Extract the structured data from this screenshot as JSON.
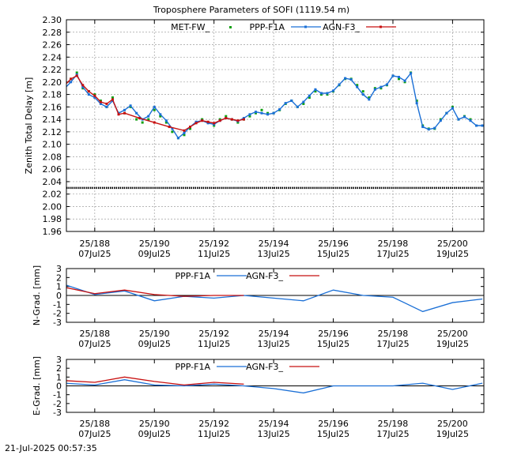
{
  "title": "Troposphere Parameters of SOFI (1119.54 m)",
  "timestamp": "21-Jul-2025 00:57:35",
  "colors": {
    "met": "#10a010",
    "ppp": "#1a6fd6",
    "agn": "#c81010",
    "axis": "#000000",
    "grid": "#a0a0a0"
  },
  "x_ticks": [
    {
      "doy": 188,
      "top": "25/188",
      "bottom": "07Jul25"
    },
    {
      "doy": 190,
      "top": "25/190",
      "bottom": "09Jul25"
    },
    {
      "doy": 192,
      "top": "25/192",
      "bottom": "11Jul25"
    },
    {
      "doy": 194,
      "top": "25/194",
      "bottom": "13Jul25"
    },
    {
      "doy": 196,
      "top": "25/196",
      "bottom": "15Jul25"
    },
    {
      "doy": 198,
      "top": "25/198",
      "bottom": "17Jul25"
    },
    {
      "doy": 200,
      "top": "25/200",
      "bottom": "19Jul25"
    }
  ],
  "chart_data": [
    {
      "type": "line",
      "ylabel": "Zenith Total Delay [m]",
      "xlim": [
        187.05,
        201.05
      ],
      "ylim": [
        1.96,
        2.3
      ],
      "yticks": [
        "1.96",
        "1.98",
        "2.00",
        "2.02",
        "2.04",
        "2.06",
        "2.08",
        "2.10",
        "2.12",
        "2.14",
        "2.16",
        "2.18",
        "2.20",
        "2.22",
        "2.24",
        "2.26",
        "2.28",
        "2.30"
      ],
      "grid": true,
      "legend": "top-center",
      "series": [
        {
          "name": "MET-FW_",
          "style": "points",
          "x": [
            187.0,
            187.2,
            187.4,
            187.6,
            187.8,
            188.0,
            188.2,
            188.4,
            188.6,
            188.8,
            189.0,
            189.2,
            189.4,
            189.6,
            189.8,
            190.0,
            190.2,
            190.4,
            190.6,
            190.8,
            191.0,
            191.2,
            191.4,
            191.6,
            191.8,
            192.0,
            192.2,
            192.4,
            192.6,
            192.8,
            193.0,
            193.2,
            193.4,
            193.6,
            193.8,
            194.0,
            194.2,
            194.4,
            194.6,
            194.8,
            195.0,
            195.2,
            195.4,
            195.6,
            195.8,
            196.0,
            196.2,
            196.4,
            196.6,
            196.8,
            197.0,
            197.2,
            197.4,
            197.6,
            197.8,
            198.0,
            198.2,
            198.4,
            198.6,
            198.8,
            199.0,
            199.2,
            199.4,
            199.6,
            199.8,
            200.0,
            200.2,
            200.4,
            200.6,
            200.8,
            201.0
          ],
          "y": [
            2.195,
            2.205,
            2.215,
            2.19,
            2.185,
            2.18,
            2.17,
            2.16,
            2.175,
            2.15,
            2.15,
            2.16,
            2.14,
            2.135,
            2.14,
            2.155,
            2.145,
            2.135,
            2.12,
            2.11,
            2.115,
            2.125,
            2.135,
            2.14,
            2.135,
            2.13,
            2.14,
            2.145,
            2.14,
            2.135,
            2.14,
            2.145,
            2.15,
            2.155,
            2.15,
            2.15,
            2.155,
            2.165,
            2.17,
            2.16,
            2.165,
            2.175,
            2.185,
            2.18,
            2.18,
            2.185,
            2.195,
            2.205,
            2.205,
            2.195,
            2.185,
            2.175,
            2.19,
            2.19,
            2.195,
            2.21,
            2.205,
            2.2,
            2.215,
            2.17,
            2.13,
            2.125,
            2.125,
            2.14,
            2.15,
            2.16,
            2.14,
            2.145,
            2.14,
            2.13,
            2.13
          ]
        },
        {
          "name": "PPP-F1A",
          "style": "line-points",
          "x": [
            187.0,
            187.2,
            187.4,
            187.6,
            187.8,
            188.0,
            188.2,
            188.4,
            188.6,
            188.8,
            189.0,
            189.2,
            189.4,
            189.6,
            189.8,
            190.0,
            190.2,
            190.4,
            190.6,
            190.8,
            191.0,
            191.2,
            191.4,
            191.6,
            191.8,
            192.0,
            192.2,
            192.4,
            192.6,
            192.8,
            193.0,
            193.2,
            193.4,
            193.6,
            193.8,
            194.0,
            194.2,
            194.4,
            194.6,
            194.8,
            195.0,
            195.2,
            195.4,
            195.6,
            195.8,
            196.0,
            196.2,
            196.4,
            196.6,
            196.8,
            197.0,
            197.2,
            197.4,
            197.6,
            197.8,
            198.0,
            198.2,
            198.4,
            198.6,
            198.8,
            199.0,
            199.2,
            199.4,
            199.6,
            199.8,
            200.0,
            200.2,
            200.4,
            200.6,
            200.8,
            201.0
          ],
          "y": [
            2.19,
            2.2,
            2.212,
            2.192,
            2.18,
            2.175,
            2.165,
            2.16,
            2.17,
            2.15,
            2.155,
            2.162,
            2.15,
            2.14,
            2.145,
            2.16,
            2.148,
            2.138,
            2.125,
            2.11,
            2.118,
            2.128,
            2.136,
            2.138,
            2.134,
            2.132,
            2.138,
            2.142,
            2.14,
            2.137,
            2.142,
            2.148,
            2.152,
            2.15,
            2.148,
            2.15,
            2.156,
            2.166,
            2.17,
            2.16,
            2.168,
            2.178,
            2.188,
            2.182,
            2.182,
            2.186,
            2.196,
            2.206,
            2.204,
            2.192,
            2.18,
            2.172,
            2.188,
            2.192,
            2.196,
            2.21,
            2.208,
            2.202,
            2.214,
            2.166,
            2.128,
            2.124,
            2.126,
            2.138,
            2.15,
            2.158,
            2.14,
            2.144,
            2.138,
            2.13,
            2.13
          ]
        },
        {
          "name": "AGN-F3_",
          "style": "line-points",
          "x": [
            187.0,
            187.2,
            187.4,
            187.6,
            187.8,
            188.0,
            188.2,
            188.4,
            188.6,
            188.8,
            189.0,
            189.5,
            190.0,
            190.5,
            191.0,
            191.2,
            191.4,
            191.6,
            191.8,
            192.0,
            192.2,
            192.4,
            192.6,
            192.8,
            193.0
          ],
          "y": [
            2.195,
            2.205,
            2.21,
            2.195,
            2.185,
            2.178,
            2.168,
            2.165,
            2.172,
            2.148,
            2.15,
            2.142,
            2.135,
            2.128,
            2.122,
            2.128,
            2.134,
            2.138,
            2.136,
            2.134,
            2.138,
            2.142,
            2.14,
            2.138,
            2.14
          ]
        },
        {
          "name": "",
          "style": "baseline-points",
          "x": [
            187.05,
            201.05
          ],
          "y": [
            2.03,
            2.03
          ]
        }
      ]
    },
    {
      "type": "line",
      "ylabel": "N-Grad. [mm]",
      "xlim": [
        187.05,
        201.05
      ],
      "ylim": [
        -3,
        3
      ],
      "yticks": [
        "-3",
        "-2",
        "-1",
        "0",
        "1",
        "2",
        "3"
      ],
      "grid": false,
      "legend": "top-center",
      "series": [
        {
          "name": "PPP-F1A",
          "x": [
            187.0,
            188.0,
            189.0,
            190.0,
            191.0,
            192.0,
            193.0,
            194.0,
            195.0,
            196.0,
            197.0,
            198.0,
            199.0,
            200.0,
            201.0
          ],
          "y": [
            1.2,
            0.1,
            0.5,
            -0.6,
            -0.1,
            -0.3,
            0.0,
            -0.3,
            -0.6,
            0.6,
            0.0,
            -0.2,
            -1.8,
            -0.8,
            -0.4
          ]
        },
        {
          "name": "AGN-F3_",
          "x": [
            187.0,
            188.0,
            189.0,
            190.0,
            191.0,
            192.0,
            193.0
          ],
          "y": [
            0.9,
            0.2,
            0.6,
            0.1,
            -0.1,
            0.0,
            0.0
          ]
        }
      ]
    },
    {
      "type": "line",
      "ylabel": "E-Grad. [mm]",
      "xlim": [
        187.05,
        201.05
      ],
      "ylim": [
        -3,
        3
      ],
      "yticks": [
        "-3",
        "-2",
        "-1",
        "0",
        "1",
        "2",
        "3"
      ],
      "grid": false,
      "legend": "top-center",
      "series": [
        {
          "name": "PPP-F1A",
          "x": [
            187.0,
            188.0,
            189.0,
            190.0,
            191.0,
            192.0,
            193.0,
            194.0,
            195.0,
            196.0,
            197.0,
            198.0,
            199.0,
            200.0,
            201.0
          ],
          "y": [
            0.3,
            0.1,
            0.7,
            0.1,
            0.0,
            0.2,
            0.0,
            -0.3,
            -0.8,
            0.0,
            0.0,
            0.0,
            0.3,
            -0.4,
            0.3
          ]
        },
        {
          "name": "AGN-F3_",
          "x": [
            187.0,
            188.0,
            189.0,
            190.0,
            191.0,
            192.0,
            193.0
          ],
          "y": [
            0.6,
            0.4,
            1.0,
            0.5,
            0.1,
            0.4,
            0.2
          ]
        }
      ]
    }
  ]
}
